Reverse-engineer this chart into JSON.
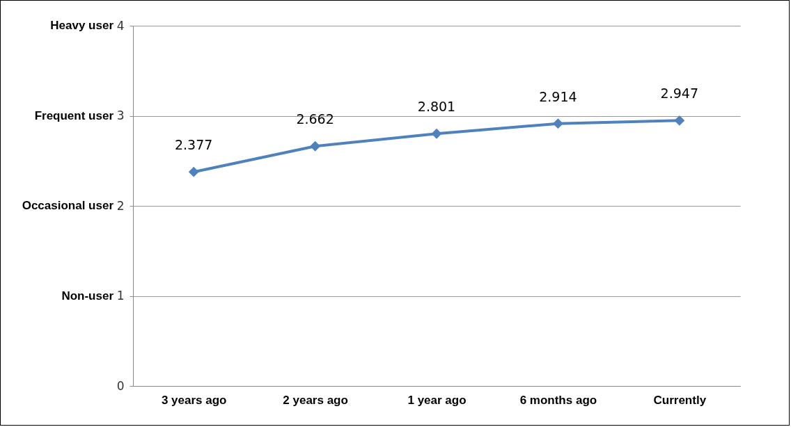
{
  "chart_data": {
    "type": "line",
    "categories": [
      "3 years ago",
      "2 years ago",
      "1 year ago",
      "6 months ago",
      "Currently"
    ],
    "series": [
      {
        "color": "#4f81bd",
        "values": [
          2.377,
          2.662,
          2.801,
          2.914,
          2.947
        ]
      }
    ],
    "ylim": [
      0,
      4
    ],
    "yticks": [
      0,
      1,
      2,
      3,
      4
    ],
    "annotations": [
      "Non-user",
      "Occasional user",
      "Frequent user",
      "Heavy user"
    ],
    "grid": "y",
    "marker": "diamond",
    "line_style": "solid",
    "data_labels": true
  }
}
